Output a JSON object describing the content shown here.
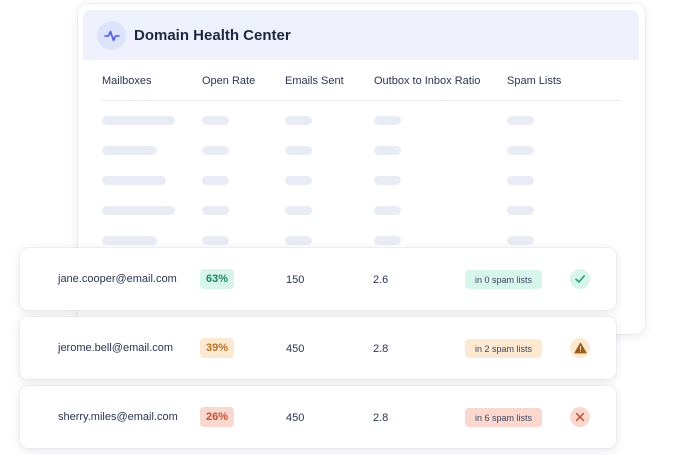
{
  "header": {
    "title": "Domain Health Center",
    "icon": "activity-pulse-icon",
    "accent": "#4a5be8"
  },
  "columns": [
    "Mailboxes",
    "Open Rate",
    "Emails Sent",
    "Outbox to Inbox Ratio",
    "Spam Lists"
  ],
  "rows": [
    {
      "email": "jane.cooper@email.com",
      "open_rate": "63%",
      "emails_sent": "150",
      "ratio": "2.6",
      "spam": "in 0 spam lists",
      "status": "healthy",
      "status_icon": "check-icon",
      "colors": {
        "rate_bg": "#d7f5ea",
        "rate_fg": "#1c8a63",
        "spam_bg": "#d7f5ea",
        "status_bg": "#d7f5ea",
        "status_fg": "#22a06f"
      }
    },
    {
      "email": "jerome.bell@email.com",
      "open_rate": "39%",
      "emails_sent": "450",
      "ratio": "2.8",
      "spam": "in 2 spam lists",
      "status": "warning",
      "status_icon": "warning-triangle-icon",
      "colors": {
        "rate_bg": "#fde9d1",
        "rate_fg": "#b8741e",
        "spam_bg": "#fde9d1",
        "status_bg": "#fde9d1",
        "status_fg": "#9c5a12"
      }
    },
    {
      "email": "sherry.miles@email.com",
      "open_rate": "26%",
      "emails_sent": "450",
      "ratio": "2.8",
      "spam": "in 6 spam lists",
      "status": "critical",
      "status_icon": "x-icon",
      "colors": {
        "rate_bg": "#fbd8cf",
        "rate_fg": "#c2512f",
        "spam_bg": "#fbd8cf",
        "status_bg": "#fbd8cf",
        "status_fg": "#c2512f"
      }
    }
  ]
}
